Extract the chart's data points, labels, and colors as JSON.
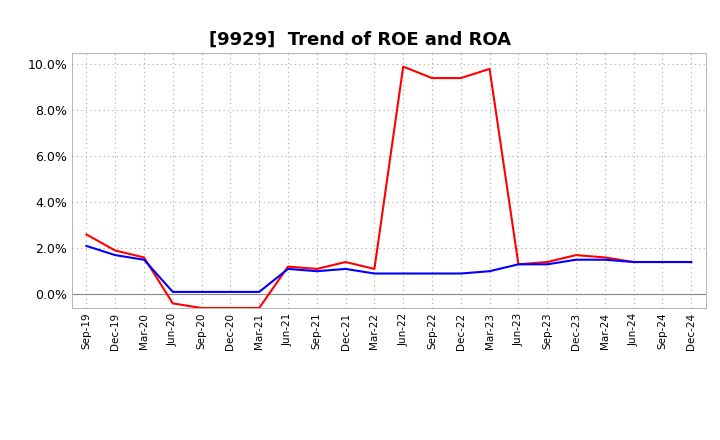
{
  "title": "[9929]  Trend of ROE and ROA",
  "x_labels": [
    "Sep-19",
    "Dec-19",
    "Mar-20",
    "Jun-20",
    "Sep-20",
    "Dec-20",
    "Mar-21",
    "Jun-21",
    "Sep-21",
    "Dec-21",
    "Mar-22",
    "Jun-22",
    "Sep-22",
    "Dec-22",
    "Mar-23",
    "Jun-23",
    "Sep-23",
    "Dec-23",
    "Mar-24",
    "Jun-24",
    "Sep-24",
    "Dec-24"
  ],
  "roe": [
    2.6,
    1.9,
    1.6,
    -0.4,
    -0.6,
    -0.6,
    -0.6,
    1.2,
    1.1,
    1.4,
    1.1,
    9.9,
    9.4,
    9.4,
    9.8,
    1.3,
    1.4,
    1.7,
    1.6,
    1.4,
    1.4,
    1.4
  ],
  "roa": [
    2.1,
    1.7,
    1.5,
    0.1,
    0.1,
    0.1,
    0.1,
    1.1,
    1.0,
    1.1,
    0.9,
    0.9,
    0.9,
    0.9,
    1.0,
    1.3,
    1.3,
    1.5,
    1.5,
    1.4,
    1.4,
    1.4
  ],
  "roe_color": "#ff0000",
  "roa_color": "#0000ff",
  "ylim": [
    -0.6,
    10.5
  ],
  "yticks": [
    0.0,
    2.0,
    4.0,
    6.0,
    8.0,
    10.0
  ],
  "background_color": "#ffffff",
  "grid_color": "#aaaaaa",
  "title_fontsize": 13,
  "line_width": 1.5
}
